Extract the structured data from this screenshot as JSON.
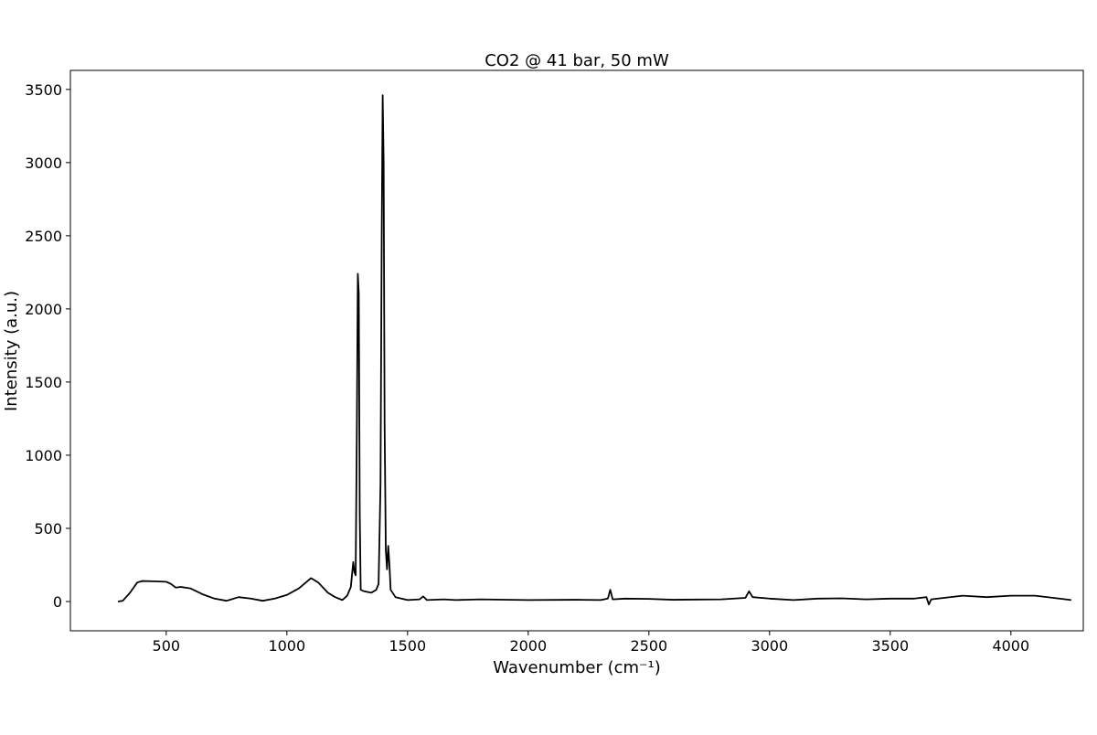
{
  "chart_data": {
    "type": "line",
    "title": "CO2 @ 41 bar, 50 mW",
    "x_label": "Wavenumber (cm⁻¹)",
    "y_label": "Intensity (a.u.)",
    "x": [
      300,
      320,
      350,
      380,
      400,
      450,
      500,
      520,
      540,
      560,
      600,
      650,
      700,
      750,
      800,
      850,
      900,
      950,
      1000,
      1050,
      1100,
      1130,
      1170,
      1200,
      1230,
      1250,
      1265,
      1275,
      1280,
      1285,
      1290,
      1294,
      1298,
      1302,
      1306,
      1320,
      1350,
      1370,
      1380,
      1388,
      1393,
      1397,
      1401,
      1405,
      1410,
      1415,
      1420,
      1425,
      1430,
      1450,
      1500,
      1550,
      1565,
      1580,
      1650,
      1700,
      1800,
      2000,
      2200,
      2300,
      2330,
      2340,
      2350,
      2400,
      2500,
      2600,
      2800,
      2900,
      2915,
      2930,
      3000,
      3100,
      3200,
      3300,
      3400,
      3500,
      3600,
      3650,
      3660,
      3670,
      3800,
      3900,
      4000,
      4100,
      4200,
      4250
    ],
    "series": [
      {
        "color": "#000000",
        "values": [
          0,
          5,
          60,
          130,
          140,
          138,
          135,
          120,
          95,
          100,
          90,
          50,
          20,
          5,
          30,
          20,
          5,
          20,
          45,
          90,
          160,
          130,
          60,
          30,
          10,
          40,
          100,
          270,
          200,
          180,
          1200,
          2240,
          2100,
          600,
          80,
          70,
          60,
          80,
          120,
          800,
          2500,
          3460,
          3000,
          1200,
          350,
          220,
          380,
          250,
          80,
          30,
          10,
          15,
          35,
          10,
          15,
          10,
          15,
          10,
          12,
          10,
          20,
          80,
          15,
          20,
          18,
          12,
          15,
          25,
          70,
          30,
          20,
          10,
          20,
          22,
          15,
          20,
          20,
          30,
          -20,
          15,
          40,
          30,
          40,
          40,
          20,
          10
        ]
      }
    ],
    "xlim": [
      103,
      4300
    ],
    "ylim": [
      -200,
      3630
    ],
    "xticks": [
      500,
      1000,
      1500,
      2000,
      2500,
      3000,
      3500,
      4000
    ],
    "yticks": [
      0,
      500,
      1000,
      1500,
      2000,
      2500,
      3000,
      3500
    ]
  }
}
